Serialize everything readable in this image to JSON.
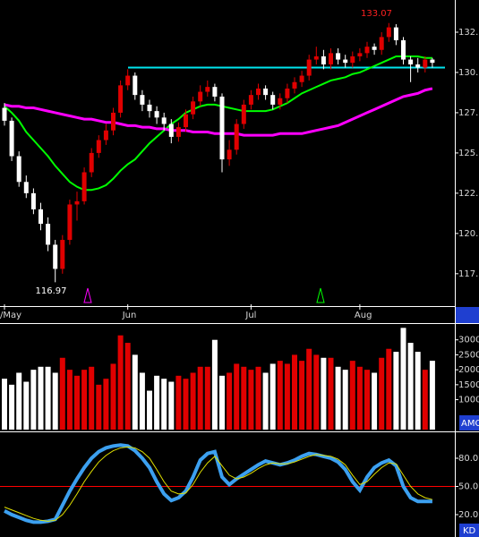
{
  "chart_data": [
    {
      "type": "candlestick",
      "categories": [
        "/May",
        null,
        null,
        null,
        null,
        null,
        null,
        null,
        null,
        null,
        null,
        null,
        null,
        null,
        null,
        null,
        null,
        "Jun",
        null,
        null,
        null,
        null,
        null,
        null,
        null,
        null,
        null,
        null,
        null,
        null,
        null,
        null,
        null,
        null,
        "Jul",
        null,
        null,
        null,
        null,
        null,
        null,
        null,
        null,
        null,
        null,
        null,
        null,
        null,
        null,
        "Aug",
        null,
        null,
        null,
        null,
        null,
        null,
        null,
        null,
        null,
        null
      ],
      "open": [
        127.8,
        127.0,
        124.8,
        123.2,
        122.5,
        121.5,
        120.6,
        119.3,
        117.8,
        119.6,
        121.8,
        122.0,
        123.8,
        125.0,
        125.8,
        126.4,
        127.5,
        129.2,
        129.8,
        128.6,
        128.0,
        127.6,
        127.2,
        126.8,
        126.0,
        126.6,
        127.4,
        128.2,
        128.8,
        129.1,
        128.5,
        124.6,
        125.2,
        126.8,
        128.0,
        128.6,
        129.0,
        128.6,
        128.0,
        128.4,
        129.0,
        129.4,
        129.8,
        130.8,
        131.0,
        130.5,
        131.2,
        130.8,
        130.6,
        131.0,
        131.2,
        131.6,
        131.4,
        132.2,
        132.8,
        132.0,
        130.8,
        130.5,
        130.3,
        130.8
      ],
      "high": [
        128.1,
        127.2,
        125.1,
        123.6,
        122.8,
        121.9,
        121.0,
        119.6,
        119.9,
        122.1,
        122.6,
        124.1,
        125.3,
        126.1,
        126.8,
        127.8,
        129.5,
        130.2,
        130.0,
        128.9,
        128.3,
        127.9,
        127.5,
        127.1,
        126.9,
        127.7,
        128.5,
        129.2,
        129.5,
        129.3,
        128.7,
        125.8,
        127.1,
        128.3,
        128.9,
        129.3,
        129.2,
        128.8,
        128.7,
        129.3,
        129.7,
        130.1,
        131.1,
        131.6,
        131.4,
        131.5,
        131.5,
        131.1,
        131.3,
        131.5,
        131.9,
        131.8,
        132.5,
        133.07,
        133.0,
        132.2,
        131.0,
        130.9,
        131.0,
        130.9
      ],
      "low": [
        126.7,
        124.5,
        122.9,
        122.2,
        121.2,
        120.2,
        118.9,
        116.97,
        117.5,
        119.3,
        120.8,
        121.8,
        123.5,
        124.7,
        125.5,
        126.1,
        127.2,
        128.9,
        128.3,
        127.6,
        127.2,
        126.8,
        126.4,
        125.6,
        125.7,
        126.3,
        127.1,
        127.9,
        128.5,
        128.2,
        123.8,
        124.2,
        124.9,
        126.5,
        127.7,
        128.3,
        128.3,
        127.7,
        127.7,
        128.1,
        128.7,
        129.1,
        129.5,
        130.5,
        130.2,
        130.2,
        130.5,
        130.3,
        130.3,
        130.7,
        130.9,
        131.1,
        131.1,
        131.9,
        131.7,
        130.5,
        129.4,
        130.0,
        130.0,
        130.3
      ],
      "close": [
        127.0,
        124.8,
        123.2,
        122.5,
        121.5,
        120.6,
        119.3,
        117.8,
        119.6,
        121.8,
        122.0,
        123.8,
        125.0,
        125.8,
        126.4,
        127.5,
        129.2,
        129.8,
        128.6,
        128.0,
        127.6,
        127.2,
        126.8,
        126.0,
        126.6,
        127.4,
        128.2,
        128.8,
        129.1,
        128.5,
        124.6,
        125.2,
        126.8,
        128.0,
        128.6,
        129.0,
        128.6,
        128.0,
        128.4,
        129.0,
        129.4,
        129.8,
        130.8,
        131.0,
        130.5,
        131.2,
        130.8,
        130.6,
        131.0,
        131.2,
        131.6,
        131.4,
        132.2,
        132.8,
        132.0,
        130.8,
        130.5,
        130.3,
        130.8,
        130.6
      ],
      "up_color": "#e00000",
      "down_color": "#ffffff",
      "series": [
        {
          "color": "#00ff00",
          "values": [
            127.9,
            127.5,
            127.0,
            126.3,
            125.8,
            125.3,
            124.8,
            124.2,
            123.7,
            123.2,
            122.9,
            122.7,
            122.7,
            122.8,
            123.0,
            123.4,
            123.9,
            124.3,
            124.6,
            125.1,
            125.6,
            126.0,
            126.4,
            126.8,
            127.1,
            127.5,
            127.7,
            127.9,
            128.0,
            128.0,
            127.9,
            127.8,
            127.7,
            127.6,
            127.6,
            127.6,
            127.6,
            127.7,
            127.9,
            128.1,
            128.4,
            128.7,
            128.9,
            129.1,
            129.3,
            129.5,
            129.6,
            129.7,
            129.9,
            130.0,
            130.2,
            130.4,
            130.6,
            130.8,
            131.0,
            131.0,
            131.0,
            131.0,
            130.9,
            130.9
          ]
        },
        {
          "color": "#ff00ff",
          "values": [
            128.0,
            127.9,
            127.9,
            127.8,
            127.8,
            127.7,
            127.6,
            127.5,
            127.4,
            127.3,
            127.2,
            127.1,
            127.1,
            127.0,
            126.9,
            126.9,
            126.8,
            126.7,
            126.7,
            126.6,
            126.6,
            126.5,
            126.5,
            126.4,
            126.4,
            126.4,
            126.3,
            126.3,
            126.3,
            126.2,
            126.2,
            126.2,
            126.2,
            126.1,
            126.1,
            126.1,
            126.1,
            126.1,
            126.2,
            126.2,
            126.2,
            126.2,
            126.3,
            126.4,
            126.5,
            126.6,
            126.7,
            126.9,
            127.1,
            127.3,
            127.5,
            127.7,
            127.9,
            128.1,
            128.3,
            128.5,
            128.6,
            128.7,
            128.9,
            129.0
          ]
        }
      ],
      "reference_line": {
        "value": 130.3,
        "color": "#00e5ee"
      },
      "annotations": [
        "133.07",
        "116.97"
      ],
      "ylim": [
        115.6,
        134.5
      ],
      "yticks": [
        {
          "value": 132.5,
          "label": "132."
        },
        {
          "value": 130,
          "label": "130."
        },
        {
          "value": 127.5,
          "label": "127."
        },
        {
          "value": 125,
          "label": "125."
        },
        {
          "value": 122.5,
          "label": "122."
        },
        {
          "value": 120,
          "label": "120."
        },
        {
          "value": 117.5,
          "label": "117."
        }
      ]
    },
    {
      "type": "bar",
      "label": "AMO",
      "values": [
        1700,
        1500,
        1900,
        1600,
        2000,
        2100,
        2100,
        1900,
        2400,
        2000,
        1800,
        2000,
        2100,
        1500,
        1700,
        2200,
        3150,
        2900,
        2500,
        1900,
        1300,
        1800,
        1700,
        1600,
        1800,
        1700,
        1900,
        2100,
        2100,
        3000,
        1800,
        1900,
        2200,
        2100,
        2000,
        2100,
        1900,
        2200,
        2300,
        2200,
        2500,
        2300,
        2700,
        2500,
        2400,
        2400,
        2100,
        2000,
        2300,
        2100,
        2000,
        1900,
        2400,
        2700,
        2600,
        3400,
        2900,
        2600,
        2000,
        2300
      ],
      "ylim": [
        0,
        3530
      ],
      "yticks": [
        3000,
        2500,
        2000,
        1500,
        1000
      ]
    },
    {
      "type": "line",
      "label": "KD",
      "series": [
        {
          "color": "#3ca0f0",
          "values": [
            24,
            20,
            17,
            14,
            12,
            12,
            13,
            15,
            30,
            45,
            58,
            70,
            80,
            87,
            91,
            93,
            94,
            93,
            88,
            80,
            70,
            55,
            42,
            35,
            38,
            45,
            60,
            78,
            85,
            87,
            60,
            52,
            58,
            63,
            68,
            73,
            77,
            75,
            73,
            75,
            78,
            82,
            85,
            84,
            82,
            80,
            76,
            68,
            55,
            46,
            60,
            70,
            75,
            78,
            72,
            50,
            38,
            34,
            34,
            34
          ]
        },
        {
          "color": "#e0e000",
          "values": [
            28,
            25,
            22,
            19,
            16,
            14,
            13,
            14,
            20,
            30,
            42,
            55,
            66,
            76,
            83,
            88,
            91,
            92,
            91,
            87,
            80,
            68,
            55,
            45,
            42,
            43,
            52,
            65,
            75,
            82,
            72,
            62,
            58,
            60,
            64,
            69,
            73,
            75,
            74,
            74,
            76,
            79,
            82,
            84,
            83,
            82,
            79,
            73,
            62,
            52,
            55,
            63,
            70,
            75,
            74,
            62,
            50,
            42,
            38,
            36
          ]
        }
      ],
      "reference_line": {
        "value": 50,
        "color": "#ff0000"
      },
      "ylim": [
        -3.8,
        107.6
      ],
      "yticks": [
        {
          "value": 80,
          "label": "80.0"
        },
        {
          "value": 50,
          "label": "50.0"
        },
        {
          "value": 20,
          "label": "20.0"
        }
      ]
    }
  ]
}
